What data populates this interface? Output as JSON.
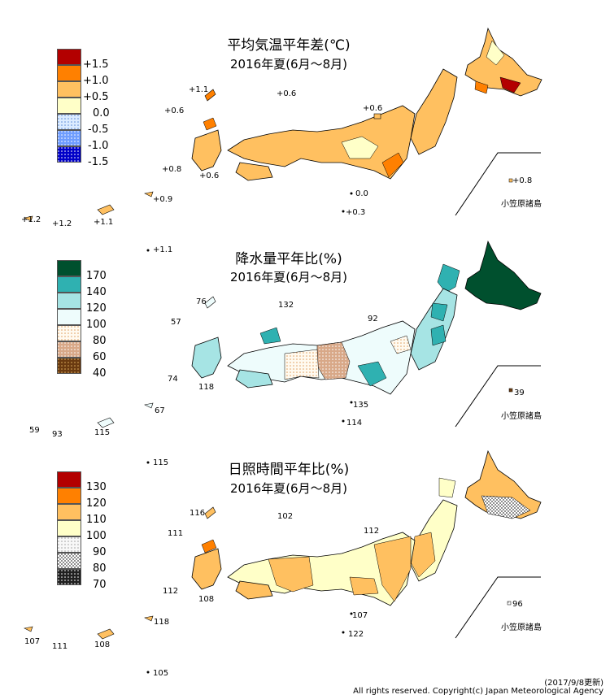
{
  "panels": [
    {
      "title": "平均気温平年差(℃)",
      "period": "2016年夏(6月～8月)",
      "legend": [
        {
          "label": "+1.5",
          "color": "#b30000",
          "pattern": "solid"
        },
        {
          "label": "+1.0",
          "color": "#ff8000",
          "pattern": "solid"
        },
        {
          "label": "+0.5",
          "color": "#ffc060",
          "pattern": "solid"
        },
        {
          "label": "0.0",
          "color": "#ffffc8",
          "pattern": "solid"
        },
        {
          "label": "-0.5",
          "color": "#dcecff",
          "pattern": "dots"
        },
        {
          "label": "-1.0",
          "color": "#6f9dff",
          "pattern": "dots"
        },
        {
          "label": "-1.5",
          "color": "#0000c8",
          "pattern": "dots"
        }
      ],
      "labels": [
        "+1.1",
        "+0.6",
        "+0.6",
        "+0.6",
        "+0.8",
        "+0.6",
        "+0.9",
        "+1.2",
        "+1.2",
        "+1.1",
        "0.0",
        "+0.3",
        "+0.8",
        "+1.1"
      ],
      "ogasawara": "小笠原諸島"
    },
    {
      "title": "降水量平年比(%)",
      "period": "2016年夏(6月～8月)",
      "legend": [
        {
          "label": "170",
          "color": "#00502e",
          "pattern": "solid"
        },
        {
          "label": "140",
          "color": "#2fb1b1",
          "pattern": "solid"
        },
        {
          "label": "120",
          "color": "#a6e4e4",
          "pattern": "solid"
        },
        {
          "label": "100",
          "color": "#eefcfc",
          "pattern": "solid"
        },
        {
          "label": "80",
          "color": "#fff0d8",
          "pattern": "dots"
        },
        {
          "label": "60",
          "color": "#d8a888",
          "pattern": "dots"
        },
        {
          "label": "40",
          "color": "#6a3a10",
          "pattern": "dots"
        }
      ],
      "labels": [
        "76",
        "132",
        "57",
        "92",
        "74",
        "118",
        "67",
        "59",
        "93",
        "115",
        "135",
        "114",
        "39",
        "115"
      ],
      "ogasawara": "小笠原諸島"
    },
    {
      "title": "日照時間平年比(%)",
      "period": "2016年夏(6月～8月)",
      "legend": [
        {
          "label": "130",
          "color": "#b30000",
          "pattern": "solid"
        },
        {
          "label": "120",
          "color": "#ff8000",
          "pattern": "solid"
        },
        {
          "label": "110",
          "color": "#ffc060",
          "pattern": "solid"
        },
        {
          "label": "100",
          "color": "#ffffc8",
          "pattern": "solid"
        },
        {
          "label": "90",
          "color": "#f4f4f4",
          "pattern": "dots"
        },
        {
          "label": "80",
          "color": "#b4b4b4",
          "pattern": "checker"
        },
        {
          "label": "70",
          "color": "#202020",
          "pattern": "dots"
        }
      ],
      "labels": [
        "116",
        "102",
        "111",
        "112",
        "112",
        "108",
        "118",
        "107",
        "111",
        "108",
        "107",
        "122",
        "96",
        "105"
      ],
      "ogasawara": "小笠原諸島"
    }
  ],
  "footer": {
    "updated": "(2017/9/8更新)",
    "copyright": "All rights reserved. Copyright(c) Japan Meteorological Agency"
  }
}
